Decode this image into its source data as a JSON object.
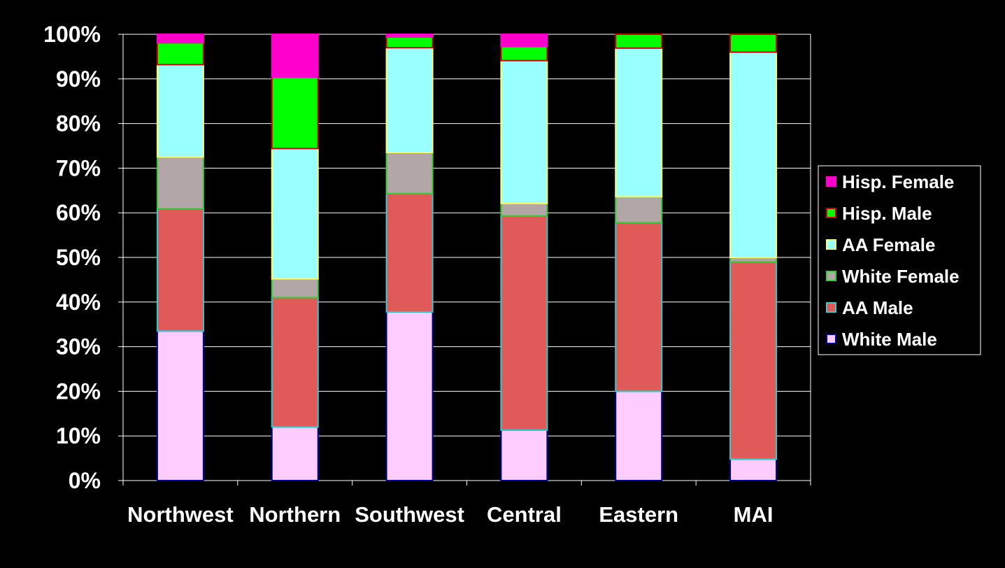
{
  "chart_data": {
    "type": "bar",
    "stacked": true,
    "title": "",
    "xlabel": "",
    "ylabel": "",
    "ylim": [
      0,
      100
    ],
    "y_ticks": [
      "0%",
      "10%",
      "20%",
      "30%",
      "40%",
      "50%",
      "60%",
      "70%",
      "80%",
      "90%",
      "100%"
    ],
    "grid": true,
    "legend_position": "right",
    "categories": [
      "Northwest",
      "Northern",
      "Southwest",
      "Central",
      "Eastern",
      "MAI"
    ],
    "series": [
      {
        "name": "White Male",
        "fill": "#FFCCFF",
        "stroke": "#000099",
        "values": [
          33.5,
          12,
          37.8,
          11.3,
          20,
          4.8
        ]
      },
      {
        "name": "AA Male",
        "fill": "#E05A5A",
        "stroke": "#33CCCC",
        "values": [
          27.4,
          29,
          26.5,
          48,
          37.8,
          44.2
        ]
      },
      {
        "name": "White Female",
        "fill": "#B3A6A6",
        "stroke": "#33CC33",
        "values": [
          11.6,
          4.2,
          9.2,
          2.8,
          5.8,
          1
        ]
      },
      {
        "name": "AA Female",
        "fill": "#99FFFF",
        "stroke": "#FFFF66",
        "values": [
          20.7,
          29.2,
          23.5,
          32,
          33.3,
          46
        ]
      },
      {
        "name": "Hisp. Male",
        "fill": "#00FF00",
        "stroke": "#CC0000",
        "values": [
          4.9,
          16,
          2.4,
          3.2,
          3.1,
          4
        ]
      },
      {
        "name": "Hisp. Female",
        "fill": "#FF00CC",
        "stroke": "#FF00CC",
        "values": [
          1.9,
          9.6,
          0.6,
          2.7,
          0,
          0
        ]
      }
    ]
  },
  "colors": {
    "background": "#000000",
    "gridline": "#FFFFFF",
    "text": "#FFFFFF"
  }
}
